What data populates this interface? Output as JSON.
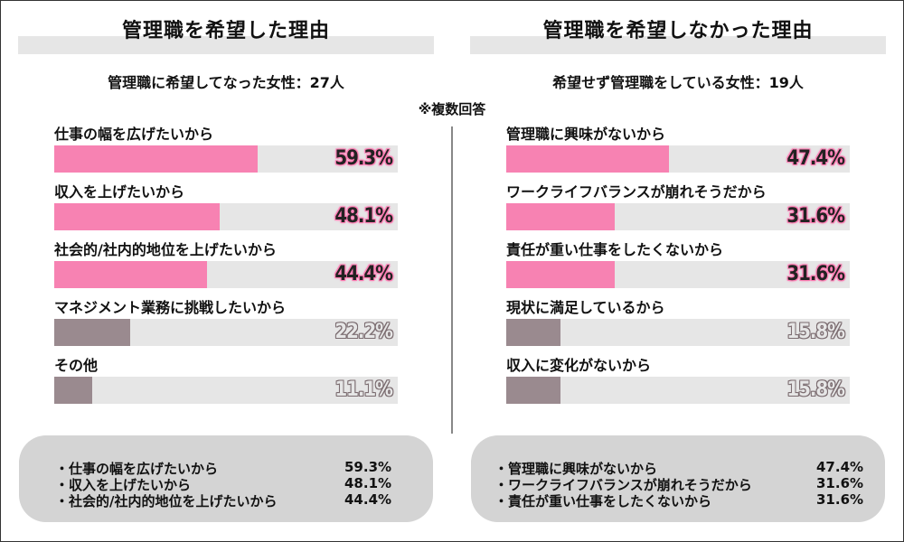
{
  "colors": {
    "highlight": "#f782b2",
    "muted": "#9a8a8f",
    "track": "#e6e6e6",
    "summary_bg": "#d4d4d4"
  },
  "note": "※複数回答",
  "left": {
    "title": "管理職を希望した理由",
    "subtitle": "管理職に希望してなった女性：27人",
    "chart_data": {
      "type": "bar",
      "orientation": "horizontal",
      "xlim": [
        0,
        100
      ],
      "categories": [
        "仕事の幅を広げたいから",
        "収入を上げたいから",
        "社会的/社内的地位を上げたいから",
        "マネジメント業務に挑戦したいから",
        "その他"
      ],
      "values": [
        59.3,
        48.1,
        44.4,
        22.2,
        11.1
      ],
      "value_labels": [
        "59.3%",
        "48.1%",
        "44.4%",
        "22.2%",
        "11.1%"
      ],
      "highlighted": [
        true,
        true,
        true,
        false,
        false
      ]
    },
    "summary": [
      {
        "label": "・仕事の幅を広げたいから",
        "value": "59.3%"
      },
      {
        "label": "・収入を上げたいから",
        "value": "48.1%"
      },
      {
        "label": "・社会的/社内的地位を上げたいから",
        "value": "44.4%"
      }
    ]
  },
  "right": {
    "title": "管理職を希望しなかった理由",
    "subtitle": "希望せず管理職をしている女性：19人",
    "chart_data": {
      "type": "bar",
      "orientation": "horizontal",
      "xlim": [
        0,
        100
      ],
      "categories": [
        "管理職に興味がないから",
        "ワークライフバランスが崩れそうだから",
        "責任が重い仕事をしたくないから",
        "現状に満足しているから",
        "収入に変化がないから"
      ],
      "values": [
        47.4,
        31.6,
        31.6,
        15.8,
        15.8
      ],
      "value_labels": [
        "47.4%",
        "31.6%",
        "31.6%",
        "15.8%",
        "15.8%"
      ],
      "highlighted": [
        true,
        true,
        true,
        false,
        false
      ]
    },
    "summary": [
      {
        "label": "・管理職に興味がないから",
        "value": "47.4%"
      },
      {
        "label": "・ワークライフバランスが崩れそうだから",
        "value": "31.6%"
      },
      {
        "label": "・責任が重い仕事をしたくないから",
        "value": "31.6%"
      }
    ]
  }
}
